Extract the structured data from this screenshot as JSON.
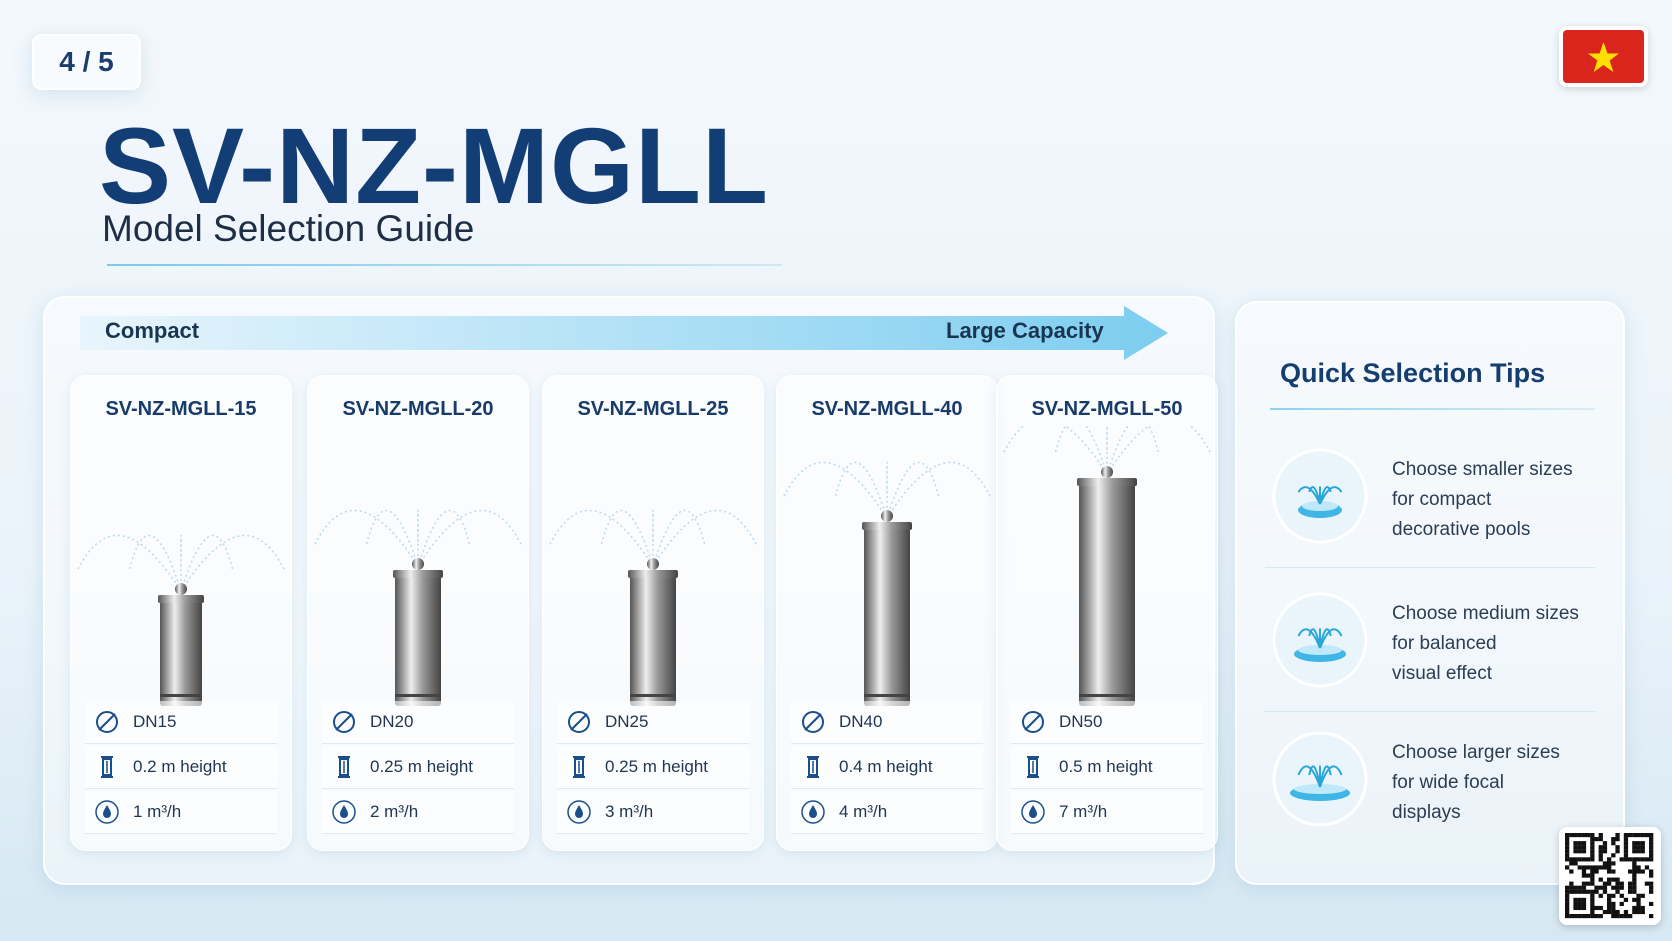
{
  "page_indicator": "4 / 5",
  "header": {
    "title": "SV-NZ-MGLL",
    "subtitle": "Model Selection Guide"
  },
  "scale": {
    "start": "Compact",
    "end": "Large Capacity"
  },
  "products": [
    {
      "name": "SV-NZ-MGLL-15",
      "diameter": "DN15",
      "height": "0.2 m height",
      "flow": "1 m³/h"
    },
    {
      "name": "SV-NZ-MGLL-20",
      "diameter": "DN20",
      "height": "0.25 m height",
      "flow": "2 m³/h"
    },
    {
      "name": "SV-NZ-MGLL-25",
      "diameter": "DN25",
      "height": "0.25 m height",
      "flow": "3 m³/h"
    },
    {
      "name": "SV-NZ-MGLL-40",
      "diameter": "DN40",
      "height": "0.4 m height",
      "flow": "4 m³/h"
    },
    {
      "name": "SV-NZ-MGLL-50",
      "diameter": "DN50",
      "height": "0.5 m height",
      "flow": "7 m³/h"
    }
  ],
  "tips": {
    "title": "Quick Selection Tips",
    "items": [
      [
        "Choose smaller sizes",
        "for compact",
        "decorative pools"
      ],
      [
        "Choose medium sizes",
        "for balanced",
        "visual effect"
      ],
      [
        "Choose larger sizes",
        "for wide focal",
        "displays"
      ]
    ]
  }
}
